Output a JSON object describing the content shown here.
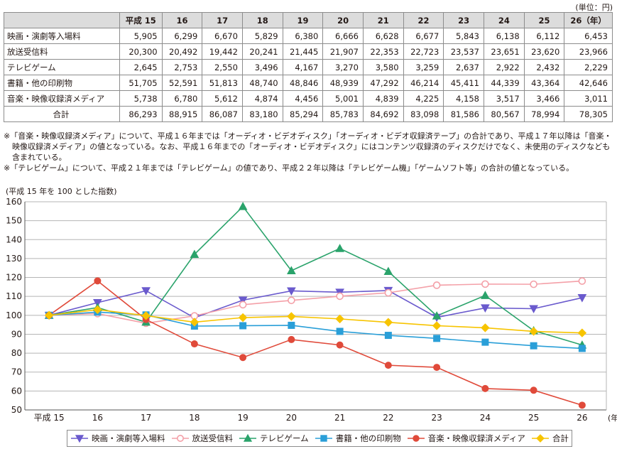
{
  "unit_label": "(単位：円)",
  "table": {
    "headers": [
      "",
      "平成 15",
      "16",
      "17",
      "18",
      "19",
      "20",
      "21",
      "22",
      "23",
      "24",
      "25",
      "26（年）"
    ],
    "rows": [
      {
        "label": "映画・演劇等入場料",
        "values": [
          "5,905",
          "6,299",
          "6,670",
          "5,829",
          "6,380",
          "6,666",
          "6,628",
          "6,677",
          "5,843",
          "6,138",
          "6,112",
          "6,453"
        ]
      },
      {
        "label": "放送受信料",
        "values": [
          "20,300",
          "20,492",
          "19,442",
          "20,241",
          "21,445",
          "21,907",
          "22,353",
          "22,723",
          "23,537",
          "23,651",
          "23,620",
          "23,966"
        ]
      },
      {
        "label": "テレビゲーム",
        "values": [
          "2,645",
          "2,753",
          "2,550",
          "3,496",
          "4,167",
          "3,270",
          "3,580",
          "3,259",
          "2,637",
          "2,922",
          "2,432",
          "2,229"
        ]
      },
      {
        "label": "書籍・他の印刷物",
        "values": [
          "51,705",
          "52,591",
          "51,813",
          "48,740",
          "48,846",
          "48,939",
          "47,292",
          "46,214",
          "45,411",
          "44,339",
          "43,364",
          "42,646"
        ]
      },
      {
        "label": "音楽・映像収録済メディア",
        "values": [
          "5,738",
          "6,780",
          "5,612",
          "4,874",
          "4,456",
          "5,001",
          "4,839",
          "4,225",
          "4,158",
          "3,517",
          "3,466",
          "3,011"
        ]
      },
      {
        "label": "合計",
        "values": [
          "86,293",
          "88,915",
          "86,087",
          "83,180",
          "85,294",
          "85,783",
          "84,692",
          "83,098",
          "81,586",
          "80,567",
          "78,994",
          "78,305"
        ]
      }
    ]
  },
  "notes": [
    "※「音楽・映像収録済メディア」について、平成１６年までは「オーディオ・ビデオディスク」「オーディオ・ビデオ収録済テープ」の合計であり、平成１７年以降は「音楽・映像収録済メディア」の値となっている。なお、平成１６年までの「オーディオ・ビデオディスク」にはコンテンツ収録済のディスクだけでなく、未使用のディスクなども含まれている。",
    "※「テレビゲーム」について、平成２１年までは「テレビゲーム」の値であり、平成２２年以降は「テレビゲーム機」「ゲームソフト等」の合計の値となっている。"
  ],
  "chart_data": {
    "type": "line",
    "title": "",
    "ylabel": "(平成 15 年を 100 とした指数)",
    "xlabel": "(年)",
    "categories": [
      "平成 15",
      "16",
      "17",
      "18",
      "19",
      "20",
      "21",
      "22",
      "23",
      "24",
      "25",
      "26"
    ],
    "ylim": [
      50,
      160
    ],
    "yticks": [
      50,
      60,
      70,
      80,
      90,
      100,
      110,
      120,
      130,
      140,
      150,
      160
    ],
    "grid": true,
    "legend_position": "bottom",
    "series": [
      {
        "name": "映画・演劇等入場料",
        "color": "#6a5acd",
        "marker": "triangle-down",
        "filled": true,
        "values": [
          100,
          106.7,
          113.0,
          98.7,
          108.0,
          112.9,
          112.2,
          113.1,
          98.9,
          103.9,
          103.5,
          109.3
        ]
      },
      {
        "name": "放送受信料",
        "color": "#f4a0a8",
        "marker": "circle",
        "filled": false,
        "values": [
          100,
          100.9,
          95.8,
          99.7,
          105.6,
          107.9,
          110.1,
          111.9,
          115.9,
          116.5,
          116.4,
          118.1
        ]
      },
      {
        "name": "テレビゲーム",
        "color": "#2aa36b",
        "marker": "triangle-up",
        "filled": true,
        "values": [
          100,
          104.1,
          96.4,
          132.2,
          157.5,
          123.6,
          135.3,
          123.2,
          99.7,
          110.5,
          91.9,
          84.3
        ]
      },
      {
        "name": "書籍・他の印刷物",
        "color": "#2a9fd8",
        "marker": "square",
        "filled": true,
        "values": [
          100,
          101.7,
          100.2,
          94.3,
          94.5,
          94.7,
          91.5,
          89.4,
          87.8,
          85.8,
          83.9,
          82.5
        ]
      },
      {
        "name": "音楽・映像収録済メディア",
        "color": "#e04a3a",
        "marker": "circle",
        "filled": true,
        "values": [
          100,
          118.2,
          97.8,
          84.9,
          77.7,
          87.2,
          84.3,
          73.6,
          72.5,
          61.3,
          60.4,
          52.5
        ]
      },
      {
        "name": "合計",
        "color": "#f7c400",
        "marker": "diamond",
        "filled": true,
        "values": [
          100,
          103.0,
          99.8,
          96.4,
          98.8,
          99.4,
          98.1,
          96.3,
          94.5,
          93.4,
          91.5,
          90.7
        ]
      }
    ]
  }
}
